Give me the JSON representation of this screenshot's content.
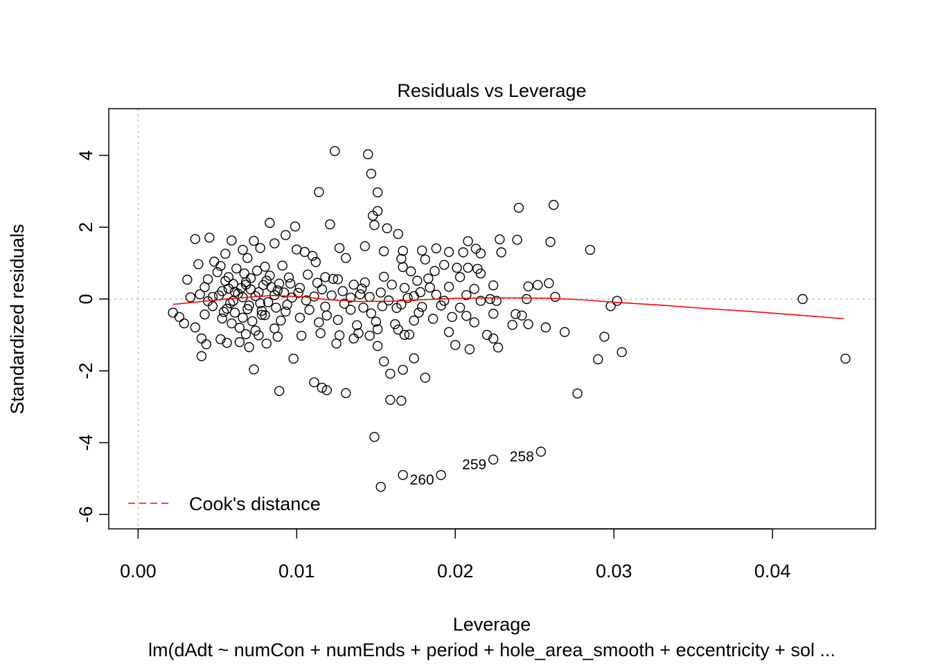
{
  "chart_data": {
    "type": "scatter",
    "title": "Residuals vs Leverage",
    "xlabel": "Leverage",
    "ylabel": "Standardized residuals",
    "subtitle": "lm(dAdt ~ numCon + numEnds + period + hole_area_smooth + eccentricity + sol ...",
    "xlim": [
      -0.00185,
      0.0465
    ],
    "ylim": [
      -6.4,
      5.3
    ],
    "x_ticks": [
      0.0,
      0.01,
      0.02,
      0.03,
      0.04
    ],
    "x_tick_labels": [
      "0.00",
      "0.01",
      "0.02",
      "0.03",
      "0.04"
    ],
    "y_ticks": [
      -6,
      -4,
      -2,
      0,
      2,
      4
    ],
    "y_tick_labels": [
      "-6",
      "-4",
      "-2",
      "0",
      "2",
      "4"
    ],
    "grid": false,
    "reference_lines": {
      "x": 0,
      "y": 0,
      "style": "dotted",
      "color": "#bdbdbd"
    },
    "legend": {
      "position": "bottom-left",
      "entries": [
        {
          "label": "Cook's distance",
          "color": "#ff0000",
          "style": "dashed"
        }
      ]
    },
    "point_color": "#000000",
    "smooth_color": "#ff0000",
    "smooth_line": [
      [
        0.0022,
        -0.15
      ],
      [
        0.004,
        -0.07
      ],
      [
        0.006,
        0.02
      ],
      [
        0.0085,
        0.1
      ],
      [
        0.0105,
        0.06
      ],
      [
        0.012,
        -0.02
      ],
      [
        0.014,
        -0.07
      ],
      [
        0.016,
        -0.06
      ],
      [
        0.018,
        -0.02
      ],
      [
        0.02,
        0.02
      ],
      [
        0.022,
        0.03
      ],
      [
        0.024,
        0.03
      ],
      [
        0.026,
        0.02
      ],
      [
        0.028,
        -0.02
      ],
      [
        0.03,
        -0.09
      ],
      [
        0.033,
        -0.17
      ],
      [
        0.036,
        -0.27
      ],
      [
        0.039,
        -0.36
      ],
      [
        0.042,
        -0.46
      ],
      [
        0.0445,
        -0.55
      ]
    ],
    "labeled_points": [
      {
        "id": "258",
        "x": 0.0254,
        "y": -4.25
      },
      {
        "id": "259",
        "x": 0.0224,
        "y": -4.47
      },
      {
        "id": "260",
        "x": 0.0191,
        "y": -4.9
      }
    ],
    "points": [
      [
        0.0124,
        4.12
      ],
      [
        0.0145,
        4.03
      ],
      [
        0.0147,
        3.49
      ],
      [
        0.0114,
        2.98
      ],
      [
        0.0151,
        2.97
      ],
      [
        0.0151,
        2.45
      ],
      [
        0.0148,
        2.32
      ],
      [
        0.0149,
        2.06
      ],
      [
        0.0157,
        1.97
      ],
      [
        0.0164,
        1.81
      ],
      [
        0.0083,
        2.12
      ],
      [
        0.0099,
        2.02
      ],
      [
        0.0121,
        2.08
      ],
      [
        0.024,
        2.54
      ],
      [
        0.0262,
        2.62
      ],
      [
        0.0285,
        1.37
      ],
      [
        0.026,
        1.59
      ],
      [
        0.0228,
        1.66
      ],
      [
        0.0239,
        1.65
      ],
      [
        0.0208,
        1.61
      ],
      [
        0.0036,
        1.67
      ],
      [
        0.0045,
        1.71
      ],
      [
        0.0059,
        1.63
      ],
      [
        0.0073,
        1.62
      ],
      [
        0.0077,
        1.42
      ],
      [
        0.0093,
        1.78
      ],
      [
        0.0086,
        1.55
      ],
      [
        0.01,
        1.38
      ],
      [
        0.0127,
        1.42
      ],
      [
        0.0143,
        1.47
      ],
      [
        0.0155,
        1.33
      ],
      [
        0.0167,
        1.34
      ],
      [
        0.0179,
        1.35
      ],
      [
        0.0188,
        1.41
      ],
      [
        0.0196,
        1.31
      ],
      [
        0.0205,
        1.3
      ],
      [
        0.0213,
        1.4
      ],
      [
        0.0216,
        1.27
      ],
      [
        0.0229,
        1.3
      ],
      [
        0.0105,
        1.31
      ],
      [
        0.011,
        1.2
      ],
      [
        0.0066,
        1.37
      ],
      [
        0.0055,
        1.26
      ],
      [
        0.0069,
        1.14
      ],
      [
        0.0048,
        1.04
      ],
      [
        0.0062,
        0.85
      ],
      [
        0.0038,
        0.97
      ],
      [
        0.0052,
        0.92
      ],
      [
        0.008,
        0.9
      ],
      [
        0.0091,
        0.93
      ],
      [
        0.0112,
        1.03
      ],
      [
        0.0131,
        1.14
      ],
      [
        0.0166,
        1.12
      ],
      [
        0.0167,
        0.89
      ],
      [
        0.0172,
        0.77
      ],
      [
        0.0181,
        1.1
      ],
      [
        0.0187,
        0.78
      ],
      [
        0.0193,
        0.95
      ],
      [
        0.0201,
        0.87
      ],
      [
        0.0208,
        0.87
      ],
      [
        0.0214,
        0.84
      ],
      [
        0.0216,
        0.71
      ],
      [
        0.0203,
        0.61
      ],
      [
        0.0183,
        0.57
      ],
      [
        0.0176,
        0.51
      ],
      [
        0.0155,
        0.62
      ],
      [
        0.0143,
        0.46
      ],
      [
        0.0136,
        0.4
      ],
      [
        0.0126,
        0.55
      ],
      [
        0.0118,
        0.61
      ],
      [
        0.0107,
        0.68
      ],
      [
        0.0095,
        0.6
      ],
      [
        0.0081,
        0.51
      ],
      [
        0.0068,
        0.47
      ],
      [
        0.0055,
        0.5
      ],
      [
        0.0044,
        0.55
      ],
      [
        0.0031,
        0.54
      ],
      [
        0.0042,
        0.33
      ],
      [
        0.0057,
        0.29
      ],
      [
        0.0071,
        0.27
      ],
      [
        0.0088,
        0.24
      ],
      [
        0.0102,
        0.31
      ],
      [
        0.0116,
        0.27
      ],
      [
        0.0129,
        0.22
      ],
      [
        0.0141,
        0.29
      ],
      [
        0.0153,
        0.18
      ],
      [
        0.0168,
        0.31
      ],
      [
        0.0178,
        0.19
      ],
      [
        0.0196,
        0.34
      ],
      [
        0.0212,
        0.28
      ],
      [
        0.0224,
        0.38
      ],
      [
        0.0246,
        0.35
      ],
      [
        0.0252,
        0.39
      ],
      [
        0.0259,
        0.44
      ],
      [
        0.0263,
        0.06
      ],
      [
        0.0245,
        0.0
      ],
      [
        0.0222,
        0.0
      ],
      [
        0.0207,
        0.11
      ],
      [
        0.0188,
        0.12
      ],
      [
        0.017,
        0.03
      ],
      [
        0.0158,
        -0.04
      ],
      [
        0.0146,
        0.06
      ],
      [
        0.0134,
        0.04
      ],
      [
        0.0122,
        0.1
      ],
      [
        0.0111,
        0.07
      ],
      [
        0.0097,
        0.04
      ],
      [
        0.0086,
        0.11
      ],
      [
        0.0074,
        0.08
      ],
      [
        0.0063,
        0.15
      ],
      [
        0.0051,
        0.1
      ],
      [
        0.0039,
        0.13
      ],
      [
        0.0033,
        0.05
      ],
      [
        0.0044,
        -0.06
      ],
      [
        0.0058,
        -0.12
      ],
      [
        0.007,
        -0.18
      ],
      [
        0.0082,
        -0.09
      ],
      [
        0.0094,
        -0.16
      ],
      [
        0.0106,
        -0.04
      ],
      [
        0.0118,
        -0.21
      ],
      [
        0.013,
        -0.13
      ],
      [
        0.0142,
        -0.24
      ],
      [
        0.0154,
        -0.2
      ],
      [
        0.0166,
        -0.15
      ],
      [
        0.0179,
        -0.22
      ],
      [
        0.0191,
        -0.18
      ],
      [
        0.0203,
        -0.24
      ],
      [
        0.0216,
        -0.05
      ],
      [
        0.0226,
        -0.05
      ],
      [
        0.0022,
        -0.38
      ],
      [
        0.0026,
        -0.5
      ],
      [
        0.0029,
        -0.68
      ],
      [
        0.0036,
        -0.79
      ],
      [
        0.0042,
        -0.43
      ],
      [
        0.0054,
        -0.36
      ],
      [
        0.0066,
        -0.52
      ],
      [
        0.0078,
        -0.44
      ],
      [
        0.009,
        -0.6
      ],
      [
        0.0102,
        -0.52
      ],
      [
        0.0114,
        -0.65
      ],
      [
        0.0126,
        -0.58
      ],
      [
        0.0138,
        -0.73
      ],
      [
        0.015,
        -0.63
      ],
      [
        0.0162,
        -0.7
      ],
      [
        0.0174,
        -0.6
      ],
      [
        0.0186,
        -0.55
      ],
      [
        0.0198,
        -0.5
      ],
      [
        0.0207,
        -0.47
      ],
      [
        0.0212,
        -0.65
      ],
      [
        0.0224,
        -0.41
      ],
      [
        0.0238,
        -0.42
      ],
      [
        0.0242,
        -0.46
      ],
      [
        0.0246,
        -0.7
      ],
      [
        0.0257,
        -0.79
      ],
      [
        0.0269,
        -0.92
      ],
      [
        0.0236,
        -0.72
      ],
      [
        0.022,
        -1.0
      ],
      [
        0.0224,
        -1.1
      ],
      [
        0.0227,
        -1.35
      ],
      [
        0.02,
        -1.28
      ],
      [
        0.0209,
        -1.4
      ],
      [
        0.0196,
        -0.92
      ],
      [
        0.0171,
        -0.99
      ],
      [
        0.0168,
        -1.0
      ],
      [
        0.0164,
        -0.85
      ],
      [
        0.0151,
        -0.84
      ],
      [
        0.0139,
        -0.95
      ],
      [
        0.0127,
        -1.01
      ],
      [
        0.0115,
        -0.95
      ],
      [
        0.0103,
        -1.02
      ],
      [
        0.0088,
        -1.05
      ],
      [
        0.0076,
        -1.01
      ],
      [
        0.0064,
        -1.2
      ],
      [
        0.0052,
        -1.12
      ],
      [
        0.004,
        -1.1
      ],
      [
        0.0043,
        -1.26
      ],
      [
        0.0056,
        -1.22
      ],
      [
        0.007,
        -1.34
      ],
      [
        0.0081,
        -1.24
      ],
      [
        0.0125,
        -1.24
      ],
      [
        0.0136,
        -1.1
      ],
      [
        0.0146,
        -1.02
      ],
      [
        0.0151,
        -1.31
      ],
      [
        0.004,
        -1.59
      ],
      [
        0.0073,
        -1.96
      ],
      [
        0.0098,
        -1.66
      ],
      [
        0.0155,
        -1.74
      ],
      [
        0.0159,
        -2.08
      ],
      [
        0.0167,
        -1.97
      ],
      [
        0.0174,
        -1.65
      ],
      [
        0.0181,
        -2.19
      ],
      [
        0.0111,
        -2.32
      ],
      [
        0.0116,
        -2.47
      ],
      [
        0.0119,
        -2.54
      ],
      [
        0.0131,
        -2.62
      ],
      [
        0.0089,
        -2.56
      ],
      [
        0.0159,
        -2.81
      ],
      [
        0.0166,
        -2.83
      ],
      [
        0.0149,
        -3.84
      ],
      [
        0.0167,
        -4.9
      ],
      [
        0.0153,
        -5.23
      ],
      [
        0.0277,
        -2.63
      ],
      [
        0.029,
        -1.68
      ],
      [
        0.0294,
        -1.05
      ],
      [
        0.0305,
        -1.48
      ],
      [
        0.0298,
        -0.2
      ],
      [
        0.0302,
        -0.05
      ],
      [
        0.0419,
        0.0
      ],
      [
        0.0446,
        -1.66
      ],
      [
        0.0254,
        -4.25
      ],
      [
        0.0224,
        -4.47
      ],
      [
        0.0191,
        -4.9
      ],
      [
        0.0047,
        0.06
      ],
      [
        0.0053,
        0.22
      ],
      [
        0.006,
        -0.05
      ],
      [
        0.0065,
        0.31
      ],
      [
        0.0069,
        -0.28
      ],
      [
        0.0076,
        0.19
      ],
      [
        0.0078,
        -0.33
      ],
      [
        0.0084,
        0.33
      ],
      [
        0.0087,
        -0.24
      ],
      [
        0.0092,
        0.18
      ],
      [
        0.0047,
        -0.2
      ],
      [
        0.0061,
        -0.38
      ],
      [
        0.0072,
        -0.62
      ],
      [
        0.0083,
        0.65
      ],
      [
        0.0057,
        0.61
      ],
      [
        0.005,
        0.75
      ],
      [
        0.0067,
        0.71
      ],
      [
        0.0075,
        0.79
      ],
      [
        0.0079,
        0.39
      ],
      [
        0.0096,
        0.43
      ],
      [
        0.0064,
        -0.8
      ],
      [
        0.0059,
        -0.68
      ],
      [
        0.0074,
        -0.88
      ],
      [
        0.0053,
        -0.54
      ],
      [
        0.0068,
        -0.98
      ],
      [
        0.0086,
        -0.82
      ],
      [
        0.006,
        0.42
      ],
      [
        0.0066,
        0.05
      ],
      [
        0.0071,
        0.58
      ],
      [
        0.0077,
        -0.12
      ],
      [
        0.0089,
        0.43
      ],
      [
        0.0093,
        -0.35
      ],
      [
        0.0101,
        0.17
      ],
      [
        0.0108,
        -0.3
      ],
      [
        0.0113,
        0.45
      ],
      [
        0.0119,
        -0.46
      ],
      [
        0.0123,
        0.56
      ],
      [
        0.0134,
        -0.3
      ],
      [
        0.014,
        0.13
      ],
      [
        0.0147,
        -0.4
      ],
      [
        0.016,
        0.4
      ],
      [
        0.0163,
        -0.25
      ],
      [
        0.0174,
        0.08
      ],
      [
        0.0177,
        -0.38
      ],
      [
        0.0184,
        0.32
      ],
      [
        0.0193,
        -0.05
      ],
      [
        0.0061,
        0.2
      ],
      [
        0.0056,
        -0.27
      ],
      [
        0.0068,
        0.4
      ],
      [
        0.008,
        -0.45
      ]
    ]
  }
}
